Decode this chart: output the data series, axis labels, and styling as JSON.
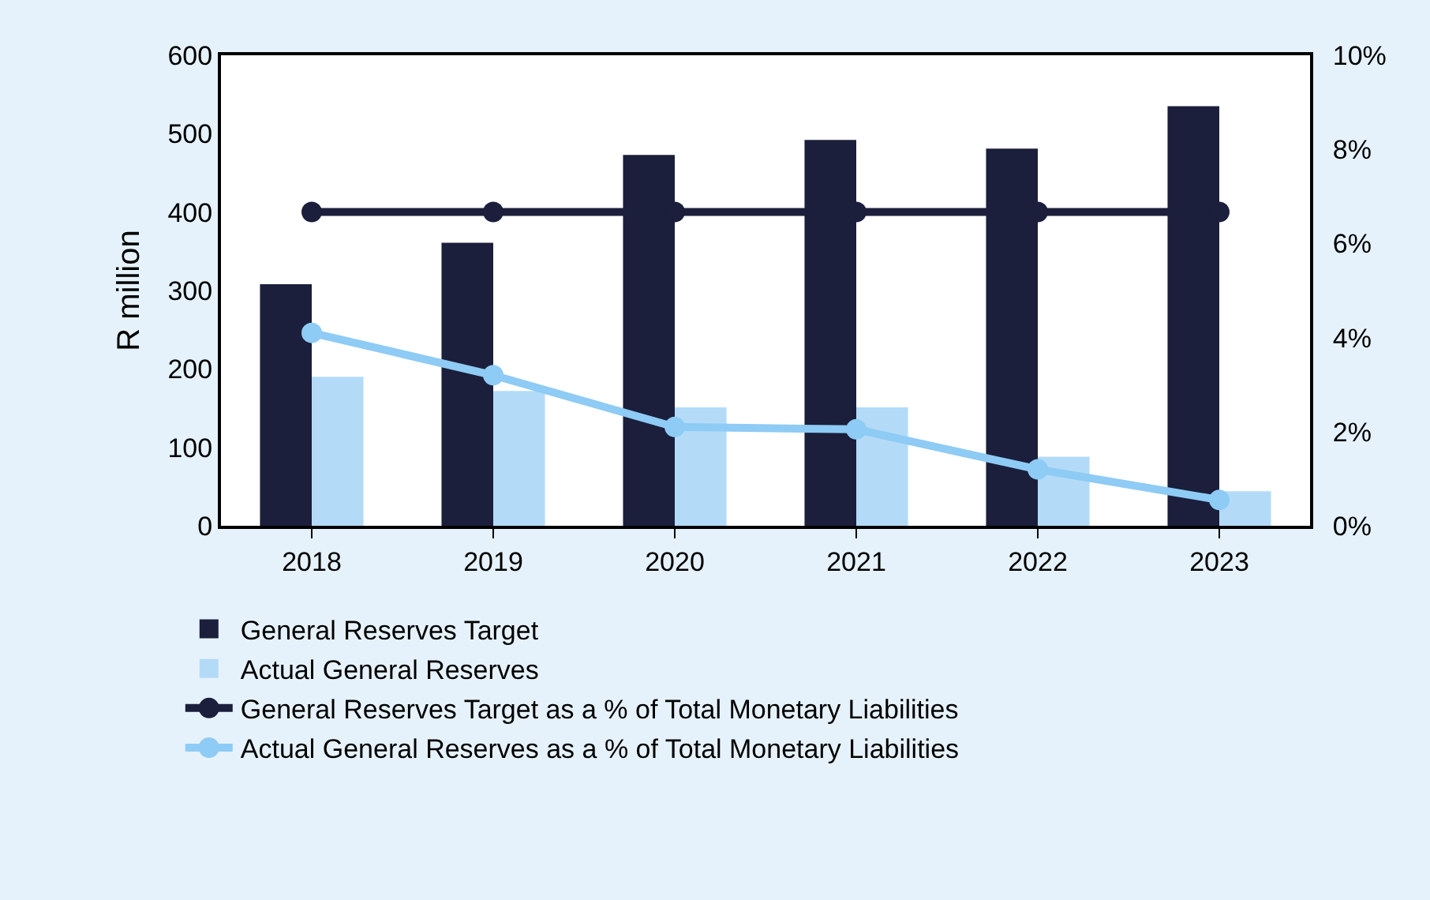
{
  "chart_data": {
    "type": "bar",
    "ylabel": "R million",
    "categories": [
      "2018",
      "2019",
      "2020",
      "2021",
      "2022",
      "2023"
    ],
    "series": [
      {
        "name": "General Reserves Target",
        "color": "#1b1f3b",
        "values": [
          308,
          361,
          473,
          492,
          481,
          535
        ]
      },
      {
        "name": "Actual General Reserves",
        "color": "#b3dbf8",
        "values": [
          190,
          172,
          151,
          151,
          88,
          44
        ]
      },
      {
        "name": "General Reserves Target as a % of Total Monetary Liabilities",
        "type": "line",
        "axis": "y2",
        "color": "#1b1f3b",
        "values": [
          6.67,
          6.67,
          6.67,
          6.67,
          6.67,
          6.67
        ]
      },
      {
        "name": "Actual General Reserves as a % of Total Monetary Liabilities",
        "type": "line",
        "axis": "y2",
        "color": "#8ecbf5",
        "values": [
          4.1,
          3.2,
          2.1,
          2.05,
          1.2,
          0.55
        ]
      }
    ],
    "ylim": [
      0,
      600
    ],
    "yticks": [
      0,
      100,
      200,
      300,
      400,
      500,
      600
    ],
    "y2lim": [
      0,
      10
    ],
    "y2ticks": [
      {
        "value": 0,
        "label": "0%"
      },
      {
        "value": 2,
        "label": "2%"
      },
      {
        "value": 4,
        "label": "4%"
      },
      {
        "value": 6,
        "label": "6%"
      },
      {
        "value": 8,
        "label": "8%"
      },
      {
        "value": 10,
        "label": "10%"
      }
    ],
    "legend": "bottom",
    "marker": "circle",
    "line_style": "solid"
  }
}
